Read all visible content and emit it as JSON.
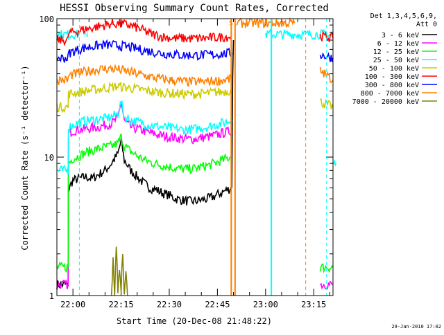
{
  "chart_data": {
    "type": "line",
    "title": "HESSI Observing Summary Count Rates, Corrected",
    "xlabel": "Start Time (20-Dec-08 21:48:22)",
    "ylabel": "Corrected Count Rate (s⁻¹ detector⁻¹)",
    "yscale": "log",
    "ylim": [
      1,
      100
    ],
    "xlim_minutes": [
      -5,
      81
    ],
    "x_ticks": [
      {
        "minutes": 0,
        "label": "22:00"
      },
      {
        "minutes": 15,
        "label": "22:15"
      },
      {
        "minutes": 30,
        "label": "22:30"
      },
      {
        "minutes": 45,
        "label": "22:45"
      },
      {
        "minutes": 60,
        "label": "23:00"
      },
      {
        "minutes": 75,
        "label": "23:15"
      }
    ],
    "y_ticks": [
      {
        "value": 1,
        "label": "1"
      },
      {
        "value": 10,
        "label": "10"
      },
      {
        "value": 100,
        "label": "100"
      }
    ],
    "legend_header": [
      "Det 1,3,4,5,6,9,",
      "Att 0"
    ],
    "legend_position": "right",
    "series": [
      {
        "name": "3 - 6 keV",
        "color": "#000000",
        "segments": [
          {
            "x": [
              -5,
              -1.5,
              -1.4,
              0,
              2,
              4,
              6,
              8,
              10,
              12,
              14,
              15,
              16,
              18,
              20,
              22,
              24,
              26,
              28,
              30,
              32,
              34,
              36,
              38,
              40,
              42,
              44,
              46,
              48,
              49.5
            ],
            "y": [
              1.2,
              1.2,
              5.8,
              6.8,
              7.0,
              7.2,
              7.0,
              7.5,
              8.0,
              9.0,
              10.5,
              13.0,
              9.5,
              8.0,
              7.2,
              6.5,
              6.0,
              5.8,
              5.5,
              5.3,
              5.0,
              4.9,
              4.8,
              4.8,
              4.9,
              5.0,
              5.2,
              5.5,
              5.8,
              6.0
            ]
          },
          {
            "x": [
              49.5,
              50.0
            ],
            "y": [
              6.0,
              70
            ]
          }
        ]
      },
      {
        "name": "6 - 12 keV",
        "color": "#ff00ff",
        "segments": [
          {
            "x": [
              -5,
              -1.5,
              -1.4,
              0,
              2,
              4,
              6,
              8,
              10,
              12,
              14,
              15,
              16,
              18,
              20,
              22,
              24,
              26,
              28,
              30,
              32,
              34,
              36,
              38,
              40,
              42,
              44,
              46,
              48,
              49.5
            ],
            "y": [
              1.2,
              1.2,
              15.0,
              15.5,
              15.8,
              16.0,
              16.3,
              16.5,
              17.0,
              17.5,
              19.0,
              25.0,
              18.0,
              16.5,
              16.0,
              15.5,
              15.0,
              14.6,
              14.2,
              14.0,
              13.8,
              13.6,
              13.5,
              13.5,
              13.8,
              14.0,
              14.3,
              14.8,
              15.2,
              15.5
            ]
          },
          {
            "x": [
              77,
              81
            ],
            "y": [
              1.2,
              1.2
            ]
          }
        ]
      },
      {
        "name": "12 - 25 keV",
        "color": "#00ff00",
        "segments": [
          {
            "x": [
              -5,
              -1.5,
              -1.4,
              0,
              2,
              4,
              6,
              8,
              10,
              12,
              14,
              15,
              16,
              18,
              20,
              22,
              24,
              26,
              28,
              30,
              32,
              34,
              36,
              38,
              40,
              42,
              44,
              46,
              48,
              49.5
            ],
            "y": [
              1.6,
              1.6,
              9.0,
              9.8,
              10.2,
              10.8,
              11.2,
              11.5,
              11.8,
              12.0,
              12.5,
              14.0,
              12.0,
              11.0,
              10.2,
              9.6,
              9.2,
              8.9,
              8.7,
              8.5,
              8.3,
              8.2,
              8.2,
              8.3,
              8.5,
              8.7,
              9.0,
              9.4,
              9.8,
              10.2
            ]
          },
          {
            "x": [
              77,
              81
            ],
            "y": [
              1.6,
              1.6
            ]
          }
        ]
      },
      {
        "name": "25 - 50 keV",
        "color": "#00ffff",
        "segments": [
          {
            "x": [
              -5,
              -1.5,
              -1.4,
              0,
              2,
              4,
              6,
              8,
              10,
              12,
              14,
              15,
              16,
              18,
              20,
              22,
              24,
              26,
              28,
              30,
              32,
              34,
              36,
              38,
              40,
              42,
              44,
              46,
              48,
              49.5
            ],
            "y": [
              8.0,
              8.0,
              16.5,
              17.0,
              17.8,
              18.2,
              18.5,
              18.8,
              19.0,
              19.5,
              20.5,
              25.0,
              19.5,
              18.5,
              18.0,
              17.5,
              17.0,
              16.7,
              16.5,
              16.2,
              16.0,
              15.8,
              15.8,
              16.0,
              16.3,
              16.5,
              17.0,
              17.5,
              18.0,
              18.5
            ]
          },
          {
            "x": [
              -5,
              2
            ],
            "y": [
              77,
              77
            ]
          },
          {
            "x": [
              60,
              81
            ],
            "y": [
              77,
              77
            ]
          },
          {
            "x": [
              81,
              82
            ],
            "y": [
              9,
              9
            ]
          }
        ]
      },
      {
        "name": "50 - 100 keV",
        "color": "#cccc00",
        "segments": [
          {
            "x": [
              -5,
              -1.5,
              -1.4,
              0,
              2,
              4,
              6,
              8,
              10,
              12,
              14,
              16,
              18,
              20,
              22,
              24,
              26,
              28,
              30,
              32,
              34,
              36,
              38,
              40,
              42,
              44,
              46,
              48,
              49.5
            ],
            "y": [
              23.0,
              23.0,
              28.5,
              29.0,
              29.5,
              30.0,
              30.5,
              31.0,
              31.5,
              32.0,
              32.5,
              32.0,
              31.5,
              31.0,
              30.5,
              30.0,
              29.5,
              29.2,
              29.0,
              28.8,
              28.6,
              28.5,
              28.5,
              28.7,
              29.0,
              29.3,
              29.6,
              30.0,
              30.5
            ]
          },
          {
            "x": [
              77,
              81
            ],
            "y": [
              25,
              23
            ]
          }
        ]
      },
      {
        "name": "100 - 300 keV",
        "color": "#ff0000",
        "segments": [
          {
            "x": [
              -5,
              -1.5,
              -1.4,
              0,
              2,
              4,
              6,
              8,
              10,
              12,
              14,
              16,
              18,
              20,
              22,
              24,
              26,
              28,
              30,
              32,
              34,
              36,
              38,
              40,
              42,
              44,
              46,
              48,
              49.5
            ],
            "y": [
              70.0,
              70.0,
              78.0,
              80.0,
              82.0,
              84.0,
              86.0,
              88.0,
              90.0,
              92.0,
              92.0,
              91.0,
              89.0,
              86.0,
              82.0,
              78.0,
              76.0,
              74.0,
              73.0,
              72.0,
              72.0,
              72.0,
              72.0,
              72.0,
              72.5,
              73.0,
              73.5,
              74.0,
              74.5
            ]
          },
          {
            "x": [
              77,
              81
            ],
            "y": [
              75,
              72
            ]
          }
        ]
      },
      {
        "name": "300 - 800 keV",
        "color": "#0000ff",
        "segments": [
          {
            "x": [
              -5,
              -1.5,
              -1.4,
              0,
              2,
              4,
              6,
              8,
              10,
              12,
              14,
              16,
              18,
              20,
              22,
              24,
              26,
              28,
              30,
              32,
              34,
              36,
              38,
              40,
              42,
              44,
              46,
              48,
              49.5
            ],
            "y": [
              52.0,
              52.0,
              56.0,
              58.0,
              60.0,
              62.0,
              63.0,
              64.0,
              64.5,
              64.5,
              64.0,
              63.0,
              62.0,
              60.5,
              59.0,
              58.0,
              57.0,
              56.0,
              55.5,
              55.0,
              54.5,
              54.5,
              54.5,
              54.5,
              54.8,
              55.0,
              55.5,
              56.0,
              56.5
            ]
          },
          {
            "x": [
              77,
              81
            ],
            "y": [
              55,
              52
            ]
          }
        ]
      },
      {
        "name": "800 - 7000 keV",
        "color": "#ff8000",
        "segments": [
          {
            "x": [
              -5,
              -1.5,
              -1.4,
              0,
              2,
              4,
              6,
              8,
              10,
              12,
              14,
              16,
              18,
              20,
              22,
              24,
              26,
              28,
              30,
              32,
              34,
              36,
              38,
              40,
              42,
              44,
              46,
              48,
              49.5
            ],
            "y": [
              36.0,
              36.0,
              38.5,
              39.5,
              40.5,
              41.5,
              42.5,
              43.0,
              43.5,
              43.5,
              43.0,
              42.0,
              41.0,
              40.0,
              39.0,
              38.0,
              37.2,
              36.6,
              36.0,
              35.6,
              35.3,
              35.0,
              35.0,
              35.0,
              35.2,
              35.5,
              35.8,
              36.2,
              36.8
            ]
          },
          {
            "x": [
              51,
              69
            ],
            "y": [
              93,
              93
            ]
          },
          {
            "x": [
              77,
              81
            ],
            "y": [
              42,
              36
            ]
          }
        ]
      },
      {
        "name": "7000 - 20000 keV",
        "color": "#808000",
        "segments": [
          {
            "x": [
              12,
              12.5,
              13,
              13.5,
              14,
              14.5,
              15,
              15.5,
              16,
              16.5,
              17
            ],
            "y": [
              1.0,
              1.8,
              1.0,
              2.2,
              1.0,
              1.6,
              1.0,
              2.0,
              1.0,
              1.5,
              1.0
            ]
          }
        ]
      }
    ],
    "vertical_lines": [
      {
        "minutes": 2.0,
        "color": "#00ffff",
        "style": "dashed"
      },
      {
        "minutes": 49.3,
        "color": "#ff8000",
        "style": "solid"
      },
      {
        "minutes": 50.5,
        "color": "#ff8000",
        "style": "solid"
      },
      {
        "minutes": 61.8,
        "color": "#00ffff",
        "style": "solid"
      },
      {
        "minutes": 72.5,
        "color": "#ff8000",
        "style": "dashed"
      },
      {
        "minutes": 79.0,
        "color": "#00ffff",
        "style": "dashed"
      }
    ],
    "annotations": [
      {
        "text": "N",
        "minutes": 3.5,
        "value": 77,
        "color": "#00ffff"
      },
      {
        "text": "S",
        "minutes": 48.6,
        "value": 94,
        "color": "#ff8000"
      }
    ],
    "timestamp": "29-Jan-2010 17:02"
  }
}
